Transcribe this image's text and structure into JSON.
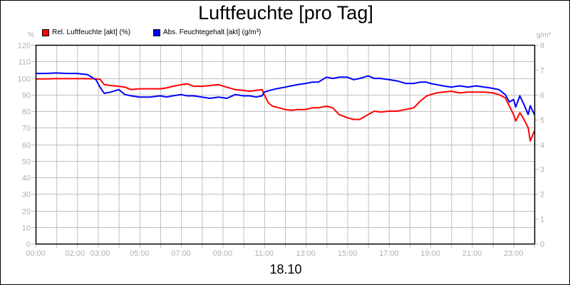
{
  "header": {
    "title": "Luftfeuchte [pro Tag]"
  },
  "footer": {
    "date_label": "18.10"
  },
  "legend": [
    {
      "label": "Rel. Luftfeuchte [akt] (%)",
      "color": "#ff0000"
    },
    {
      "label": "Abs. Feuchtegehalt [akt] (g/m³)",
      "color": "#0000ff"
    }
  ],
  "axes": {
    "left_unit": "%",
    "right_unit": "g/m³",
    "left_ticks": [
      "0",
      "10",
      "20",
      "30",
      "40",
      "50",
      "60",
      "70",
      "80",
      "90",
      "100",
      "110",
      "120"
    ],
    "right_ticks": [
      "0",
      "1",
      "2",
      "3",
      "4",
      "5",
      "6",
      "7",
      "8"
    ],
    "x_tick_labels": [
      {
        "hour": 0,
        "label": "00:00"
      },
      {
        "hour": 2,
        "label": "02:00"
      },
      {
        "hour": 3,
        "label": "03:00"
      },
      {
        "hour": 5,
        "label": "05:00"
      },
      {
        "hour": 7,
        "label": "07:00"
      },
      {
        "hour": 9,
        "label": "09:00"
      },
      {
        "hour": 11,
        "label": "11:00"
      },
      {
        "hour": 13,
        "label": "13:00"
      },
      {
        "hour": 15,
        "label": "15:00"
      },
      {
        "hour": 17,
        "label": "17:00"
      },
      {
        "hour": 19,
        "label": "19:00"
      },
      {
        "hour": 21,
        "label": "21:00"
      },
      {
        "hour": 23,
        "label": "23:00"
      }
    ]
  },
  "chart_data": {
    "type": "line",
    "title": "Luftfeuchte [pro Tag]",
    "xlabel": "18.10",
    "ylabel": "%",
    "y2label": "g/m³",
    "ylim": [
      0,
      120
    ],
    "y2lim": [
      0,
      8
    ],
    "xlim": [
      0,
      24
    ],
    "grid": true,
    "legend_position": "top-left",
    "series": [
      {
        "name": "Rel. Luftfeuchte [akt] (%)",
        "axis": "left",
        "color": "#ff0000",
        "x": [
          0,
          0.5,
          1,
          1.5,
          2,
          2.5,
          2.9,
          3.1,
          3.3,
          3.6,
          4,
          4.3,
          4.6,
          5,
          5.5,
          6,
          6.3,
          6.6,
          7,
          7.3,
          7.6,
          8,
          8.4,
          8.8,
          9.2,
          9.6,
          10,
          10.3,
          10.6,
          10.9,
          11.0,
          11.2,
          11.4,
          11.7,
          12,
          12.3,
          12.6,
          13,
          13.3,
          13.6,
          14,
          14.3,
          14.6,
          15,
          15.3,
          15.6,
          16,
          16.3,
          16.6,
          17,
          17.4,
          17.8,
          18.2,
          18.5,
          18.8,
          19,
          19.3,
          19.6,
          20,
          20.4,
          20.8,
          21.2,
          21.6,
          22,
          22.3,
          22.6,
          22.8,
          23,
          23.1,
          23.3,
          23.5,
          23.7,
          23.8,
          24
        ],
        "values": [
          99.5,
          99.5,
          99.6,
          99.6,
          99.6,
          99.6,
          99.5,
          99.3,
          96,
          95.5,
          95,
          94.5,
          93,
          93.5,
          93.5,
          93.5,
          94,
          95,
          96,
          96.5,
          95,
          95,
          95.5,
          96,
          94.5,
          93,
          92.5,
          92,
          92.5,
          93,
          90,
          85,
          83,
          82,
          81,
          80.5,
          81,
          81,
          82,
          82,
          83,
          82,
          78,
          76,
          75,
          75,
          78,
          80,
          79.5,
          80,
          80,
          81,
          82,
          86,
          89,
          90,
          91,
          91.5,
          92,
          91,
          91.5,
          91.5,
          91.5,
          91,
          90,
          88,
          83,
          78,
          74,
          79,
          75,
          70,
          62,
          68
        ]
      },
      {
        "name": "Abs. Feuchtegehalt [akt] (g/m³)",
        "axis": "right",
        "color": "#0000ff",
        "x": [
          0,
          0.5,
          1,
          1.5,
          2,
          2.5,
          2.9,
          3.1,
          3.3,
          3.6,
          4,
          4.3,
          4.6,
          5,
          5.5,
          6,
          6.3,
          6.6,
          7,
          7.3,
          7.6,
          8,
          8.4,
          8.8,
          9.2,
          9.6,
          10,
          10.3,
          10.6,
          10.9,
          11.0,
          11.2,
          11.4,
          11.7,
          12,
          12.3,
          12.6,
          13,
          13.3,
          13.6,
          14,
          14.3,
          14.6,
          15,
          15.3,
          15.6,
          16,
          16.3,
          16.6,
          17,
          17.4,
          17.8,
          18.2,
          18.5,
          18.8,
          19,
          19.3,
          19.6,
          20,
          20.4,
          20.8,
          21.2,
          21.6,
          22,
          22.3,
          22.6,
          22.8,
          23,
          23.1,
          23.3,
          23.5,
          23.7,
          23.8,
          24
        ],
        "values": [
          6.85,
          6.85,
          6.87,
          6.85,
          6.85,
          6.8,
          6.6,
          6.3,
          6.05,
          6.1,
          6.2,
          6.0,
          5.95,
          5.9,
          5.9,
          5.95,
          5.9,
          5.95,
          6.0,
          5.95,
          5.95,
          5.9,
          5.85,
          5.9,
          5.85,
          6.0,
          5.95,
          5.95,
          5.9,
          5.95,
          6.1,
          6.15,
          6.2,
          6.25,
          6.3,
          6.35,
          6.4,
          6.45,
          6.5,
          6.5,
          6.7,
          6.65,
          6.7,
          6.7,
          6.6,
          6.65,
          6.75,
          6.65,
          6.65,
          6.6,
          6.55,
          6.45,
          6.45,
          6.5,
          6.5,
          6.45,
          6.4,
          6.35,
          6.3,
          6.35,
          6.3,
          6.35,
          6.3,
          6.25,
          6.2,
          6.0,
          5.7,
          5.8,
          5.5,
          5.95,
          5.6,
          5.2,
          5.55,
          5.2
        ]
      }
    ]
  }
}
